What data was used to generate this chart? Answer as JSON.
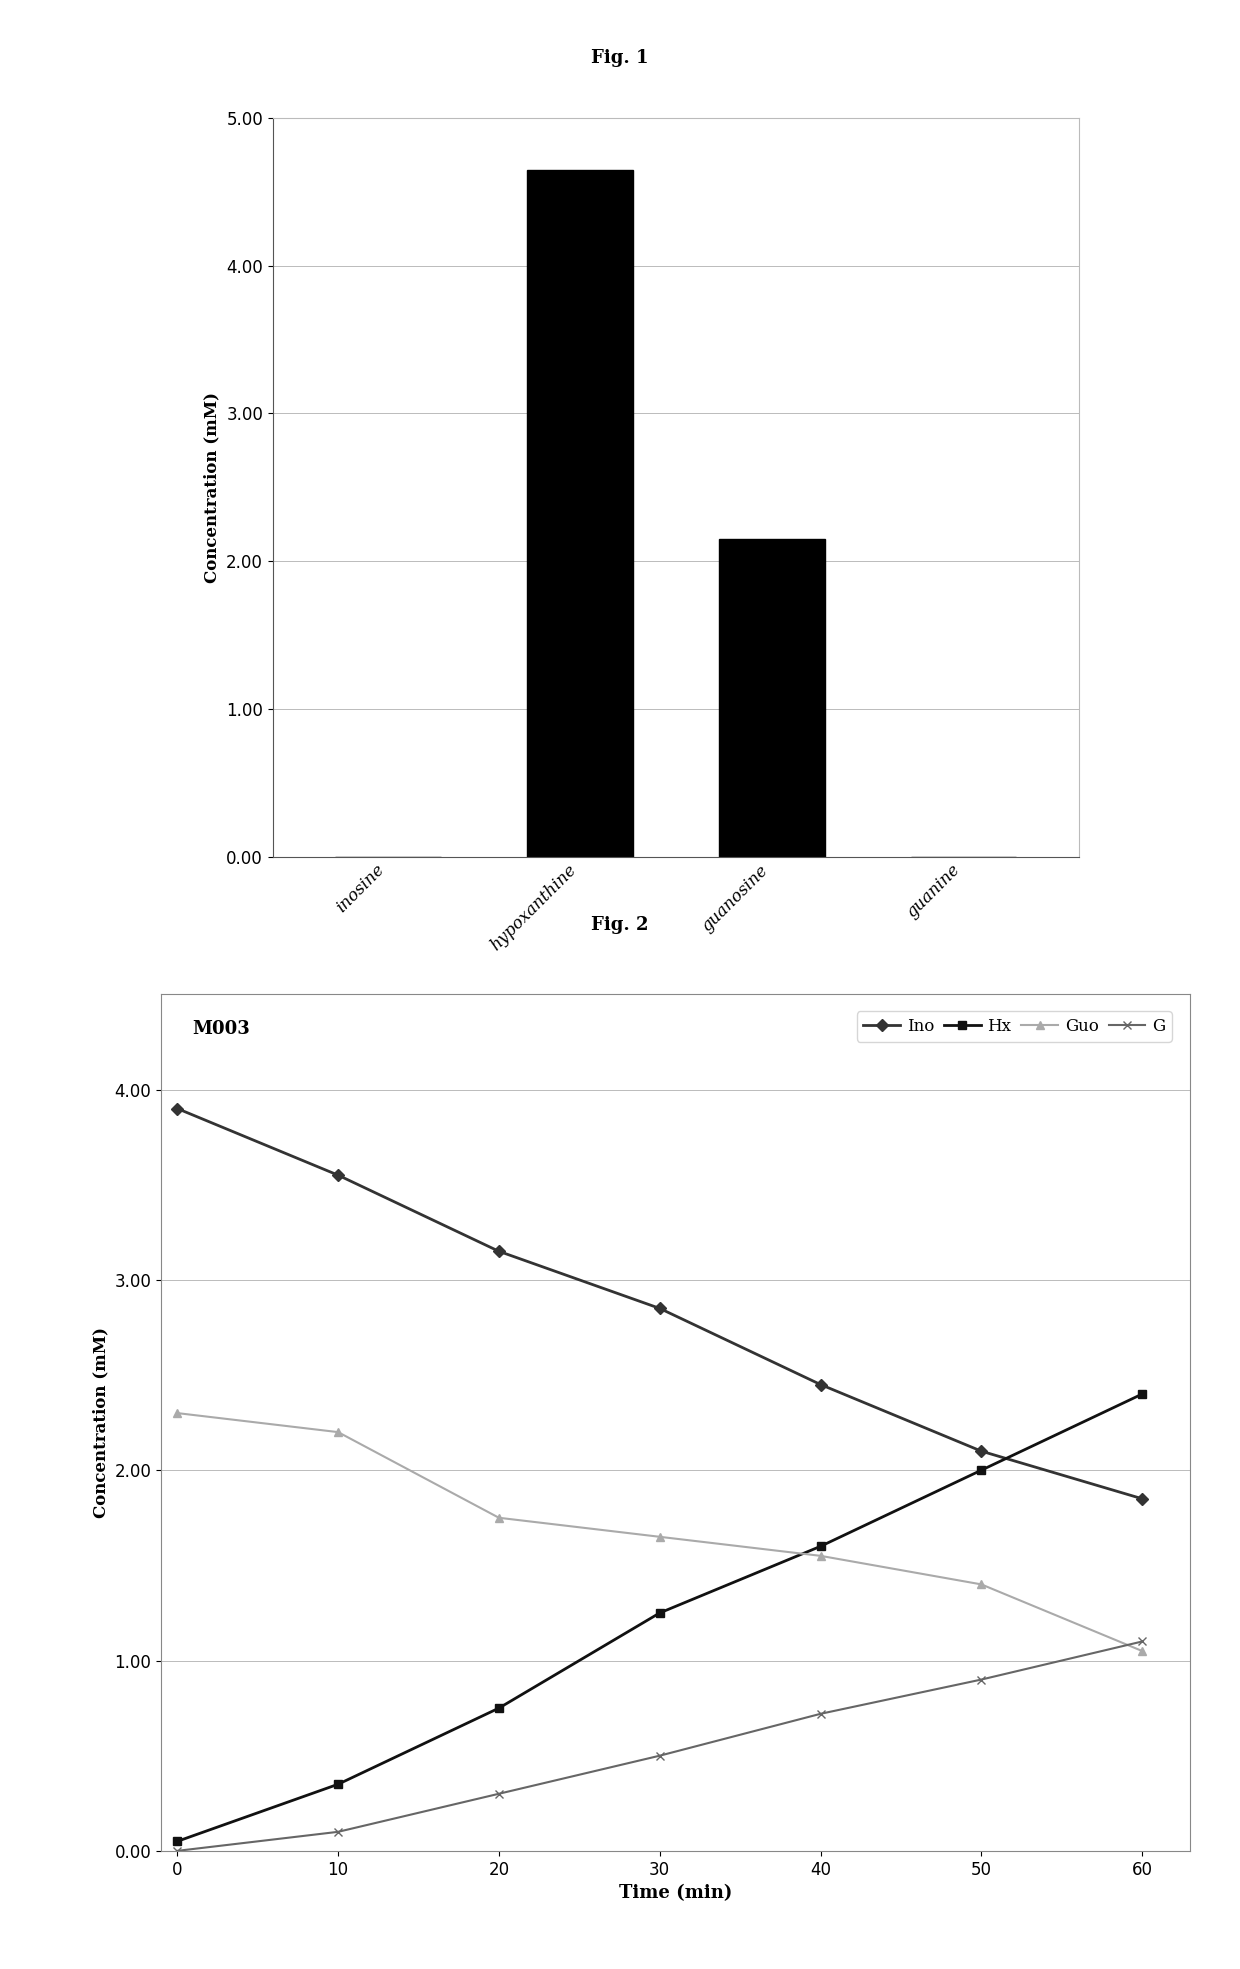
{
  "fig1_title": "Fig. 1",
  "fig2_title": "Fig. 2",
  "bar_categories": [
    "inosine",
    "hypoxanthine",
    "guanosine",
    "guanine"
  ],
  "bar_values": [
    0.0,
    4.65,
    2.15,
    0.0
  ],
  "bar_color": "#000000",
  "bar_ylabel": "Concentration (mM)",
  "bar_ylim": [
    0,
    5.0
  ],
  "bar_yticks": [
    0.0,
    1.0,
    2.0,
    3.0,
    4.0,
    5.0
  ],
  "line_xlabel": "Time (min)",
  "line_ylabel": "Concentration (mM)",
  "line_ylim": [
    0.0,
    4.5
  ],
  "line_yticks": [
    0.0,
    1.0,
    2.0,
    3.0,
    4.0
  ],
  "line_xticks": [
    0,
    10,
    20,
    30,
    40,
    50,
    60
  ],
  "line_label": "M003",
  "series": {
    "Ino": {
      "x": [
        0,
        10,
        20,
        30,
        40,
        50,
        60
      ],
      "y": [
        3.9,
        3.55,
        3.15,
        2.85,
        2.45,
        2.1,
        1.85
      ],
      "color": "#333333",
      "marker": "D",
      "markersize": 6,
      "linewidth": 2.0
    },
    "Hx": {
      "x": [
        0,
        10,
        20,
        30,
        40,
        50,
        60
      ],
      "y": [
        0.05,
        0.35,
        0.75,
        1.25,
        1.6,
        2.0,
        2.4
      ],
      "color": "#111111",
      "marker": "s",
      "markersize": 6,
      "linewidth": 2.0
    },
    "Guo": {
      "x": [
        0,
        10,
        20,
        30,
        40,
        50,
        60
      ],
      "y": [
        2.3,
        2.2,
        1.75,
        1.65,
        1.55,
        1.4,
        1.05
      ],
      "color": "#aaaaaa",
      "marker": "^",
      "markersize": 6,
      "linewidth": 1.5
    },
    "G": {
      "x": [
        0,
        10,
        20,
        30,
        40,
        50,
        60
      ],
      "y": [
        0.0,
        0.1,
        0.3,
        0.5,
        0.72,
        0.9,
        1.1
      ],
      "color": "#666666",
      "marker": "x",
      "markersize": 6,
      "linewidth": 1.5
    }
  },
  "background_color": "#ffffff",
  "fig_background": "#ffffff"
}
